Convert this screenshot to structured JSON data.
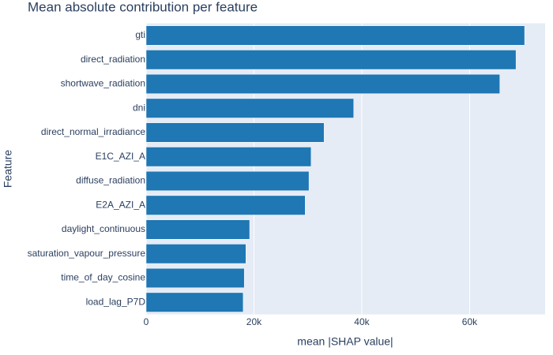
{
  "chart_data": {
    "type": "barh",
    "title": "Mean absolute contribution per feature",
    "x_label": "mean |SHAP value|",
    "y_label": "Feature",
    "categories": [
      "gti",
      "direct_radiation",
      "shortwave_radiation",
      "dni",
      "direct_normal_irradiance",
      "E1C_AZI_A",
      "diffuse_radiation",
      "E2A_AZI_A",
      "daylight_continuous",
      "saturation_vapour_pressure",
      "time_of_day_cosine",
      "load_lag_P7D"
    ],
    "values": [
      70200,
      68600,
      65600,
      38500,
      33000,
      30600,
      30200,
      29500,
      19200,
      18500,
      18200,
      18000
    ],
    "color": "#1f77b4",
    "xlim": [
      0,
      74000
    ],
    "xticks": [
      0,
      {
        "value": 20000,
        "label": "20k"
      },
      {
        "value": 40000,
        "label": "40k"
      },
      {
        "value": 60000,
        "label": "60k"
      }
    ],
    "grid": true
  }
}
